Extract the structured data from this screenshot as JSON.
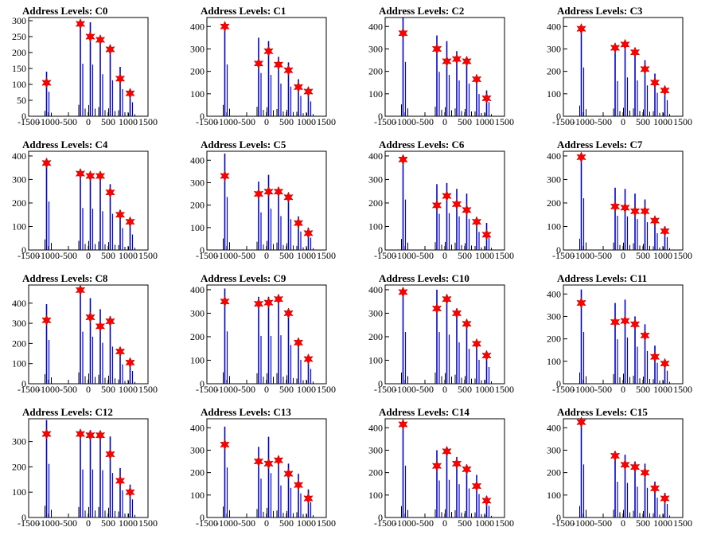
{
  "figure": {
    "x_ticks": [
      -1500,
      -1000,
      -500,
      0,
      500,
      1000,
      1500
    ],
    "xlim": [
      -1500,
      1500
    ],
    "bar_color": "#0000cc",
    "marker_color": "#ff0000",
    "panels": [
      {
        "title": "Address Levels: C0",
        "ylim": [
          0,
          310
        ],
        "y_ticks": [
          0,
          50,
          100,
          150,
          200,
          250,
          300
        ],
        "stars": [
          105,
          290,
          250,
          240,
          210,
          118,
          72
        ],
        "peaks": [
          140,
          300,
          295,
          240,
          205,
          155,
          80
        ]
      },
      {
        "title": "Address Levels: C1",
        "ylim": [
          0,
          440
        ],
        "y_ticks": [
          0,
          100,
          200,
          300,
          400
        ],
        "stars": [
          400,
          235,
          290,
          230,
          205,
          130,
          110
        ],
        "peaks": [
          420,
          350,
          335,
          265,
          240,
          165,
          120
        ]
      },
      {
        "title": "Address Levels: C2",
        "ylim": [
          0,
          440
        ],
        "y_ticks": [
          0,
          100,
          200,
          300,
          400
        ],
        "stars": [
          370,
          300,
          245,
          255,
          245,
          165,
          80
        ],
        "peaks": [
          440,
          360,
          335,
          290,
          265,
          180,
          115
        ]
      },
      {
        "title": "Address Levels: C3",
        "ylim": [
          0,
          440
        ],
        "y_ticks": [
          0,
          100,
          200,
          300,
          400
        ],
        "stars": [
          390,
          305,
          320,
          285,
          210,
          150,
          115
        ],
        "peaks": [
          395,
          285,
          315,
          290,
          250,
          190,
          130
        ]
      },
      {
        "title": "Address Levels: C4",
        "ylim": [
          0,
          420
        ],
        "y_ticks": [
          0,
          100,
          200,
          300,
          400
        ],
        "stars": [
          370,
          325,
          315,
          315,
          245,
          150,
          120
        ],
        "peaks": [
          375,
          325,
          320,
          300,
          280,
          170,
          120
        ]
      },
      {
        "title": "Address Levels: C5",
        "ylim": [
          0,
          440
        ],
        "y_ticks": [
          0,
          100,
          200,
          300,
          400
        ],
        "stars": [
          330,
          250,
          260,
          260,
          235,
          120,
          75
        ],
        "peaks": [
          430,
          305,
          335,
          275,
          250,
          150,
          100
        ]
      },
      {
        "title": "Address Levels: C6",
        "ylim": [
          0,
          420
        ],
        "y_ticks": [
          0,
          100,
          200,
          300,
          400
        ],
        "stars": [
          385,
          190,
          230,
          195,
          170,
          120,
          65
        ],
        "peaks": [
          390,
          280,
          285,
          260,
          240,
          140,
          115
        ]
      },
      {
        "title": "Address Levels: C7",
        "ylim": [
          0,
          420
        ],
        "y_ticks": [
          0,
          100,
          200,
          300,
          400
        ],
        "stars": [
          395,
          185,
          180,
          165,
          165,
          125,
          80
        ],
        "peaks": [
          400,
          265,
          260,
          240,
          215,
          130,
          100
        ]
      },
      {
        "title": "Address Levels: C8",
        "ylim": [
          0,
          490
        ],
        "y_ticks": [
          0,
          100,
          200,
          300,
          400
        ],
        "stars": [
          315,
          465,
          330,
          285,
          310,
          160,
          105
        ],
        "peaks": [
          395,
          470,
          425,
          370,
          335,
          175,
          115
        ]
      },
      {
        "title": "Address Levels: C9",
        "ylim": [
          0,
          420
        ],
        "y_ticks": [
          0,
          100,
          200,
          300,
          400
        ],
        "stars": [
          350,
          340,
          345,
          360,
          300,
          175,
          105
        ],
        "peaks": [
          405,
          370,
          370,
          375,
          300,
          185,
          115
        ]
      },
      {
        "title": "Address Levels: C10",
        "ylim": [
          0,
          420
        ],
        "y_ticks": [
          0,
          100,
          200,
          300,
          400
        ],
        "stars": [
          390,
          320,
          360,
          300,
          255,
          170,
          120
        ],
        "peaks": [
          400,
          400,
          380,
          320,
          270,
          185,
          130
        ]
      },
      {
        "title": "Address Levels: C11",
        "ylim": [
          0,
          440
        ],
        "y_ticks": [
          0,
          100,
          200,
          300,
          400
        ],
        "stars": [
          360,
          275,
          280,
          265,
          215,
          120,
          90
        ],
        "peaks": [
          420,
          360,
          375,
          300,
          265,
          170,
          105
        ]
      },
      {
        "title": "Address Levels: C12",
        "ylim": [
          0,
          390
        ],
        "y_ticks": [
          0,
          100,
          200,
          300
        ],
        "stars": [
          330,
          330,
          325,
          325,
          250,
          145,
          100
        ],
        "peaks": [
          385,
          345,
          345,
          340,
          320,
          195,
          130
        ]
      },
      {
        "title": "Address Levels: C13",
        "ylim": [
          0,
          440
        ],
        "y_ticks": [
          0,
          100,
          200,
          300,
          400
        ],
        "stars": [
          325,
          250,
          240,
          255,
          195,
          145,
          85
        ],
        "peaks": [
          405,
          315,
          360,
          260,
          240,
          195,
          125
        ]
      },
      {
        "title": "Address Levels: C14",
        "ylim": [
          0,
          440
        ],
        "y_ticks": [
          0,
          100,
          200,
          300,
          400
        ],
        "stars": [
          415,
          230,
          295,
          240,
          215,
          140,
          75
        ],
        "peaks": [
          420,
          300,
          305,
          270,
          235,
          190,
          95
        ]
      },
      {
        "title": "Address Levels: C15",
        "ylim": [
          0,
          440
        ],
        "y_ticks": [
          0,
          100,
          200,
          300,
          400
        ],
        "stars": [
          425,
          275,
          235,
          225,
          200,
          130,
          85
        ],
        "peaks": [
          430,
          290,
          280,
          250,
          240,
          160,
          110
        ]
      }
    ]
  },
  "chart_data": {
    "type": "bar",
    "level_x": [
      -1050,
      -200,
      50,
      300,
      550,
      800,
      1050
    ],
    "xlim": [
      -1500,
      1500
    ],
    "series": [
      {
        "name": "C0",
        "values": [
          105,
          290,
          250,
          240,
          210,
          118,
          72
        ]
      },
      {
        "name": "C1",
        "values": [
          400,
          235,
          290,
          230,
          205,
          130,
          110
        ]
      },
      {
        "name": "C2",
        "values": [
          370,
          300,
          245,
          255,
          245,
          165,
          80
        ]
      },
      {
        "name": "C3",
        "values": [
          390,
          305,
          320,
          285,
          210,
          150,
          115
        ]
      },
      {
        "name": "C4",
        "values": [
          370,
          325,
          315,
          315,
          245,
          150,
          120
        ]
      },
      {
        "name": "C5",
        "values": [
          330,
          250,
          260,
          260,
          235,
          120,
          75
        ]
      },
      {
        "name": "C6",
        "values": [
          385,
          190,
          230,
          195,
          170,
          120,
          65
        ]
      },
      {
        "name": "C7",
        "values": [
          395,
          185,
          180,
          165,
          165,
          125,
          80
        ]
      },
      {
        "name": "C8",
        "values": [
          315,
          465,
          330,
          285,
          310,
          160,
          105
        ]
      },
      {
        "name": "C9",
        "values": [
          350,
          340,
          345,
          360,
          300,
          175,
          105
        ]
      },
      {
        "name": "C10",
        "values": [
          390,
          320,
          360,
          300,
          255,
          170,
          120
        ]
      },
      {
        "name": "C11",
        "values": [
          360,
          275,
          280,
          265,
          215,
          120,
          90
        ]
      },
      {
        "name": "C12",
        "values": [
          330,
          330,
          325,
          325,
          250,
          145,
          100
        ]
      },
      {
        "name": "C13",
        "values": [
          325,
          250,
          240,
          255,
          195,
          145,
          85
        ]
      },
      {
        "name": "C14",
        "values": [
          415,
          230,
          295,
          240,
          215,
          140,
          75
        ]
      },
      {
        "name": "C15",
        "values": [
          425,
          275,
          235,
          225,
          200,
          130,
          85
        ]
      }
    ]
  }
}
